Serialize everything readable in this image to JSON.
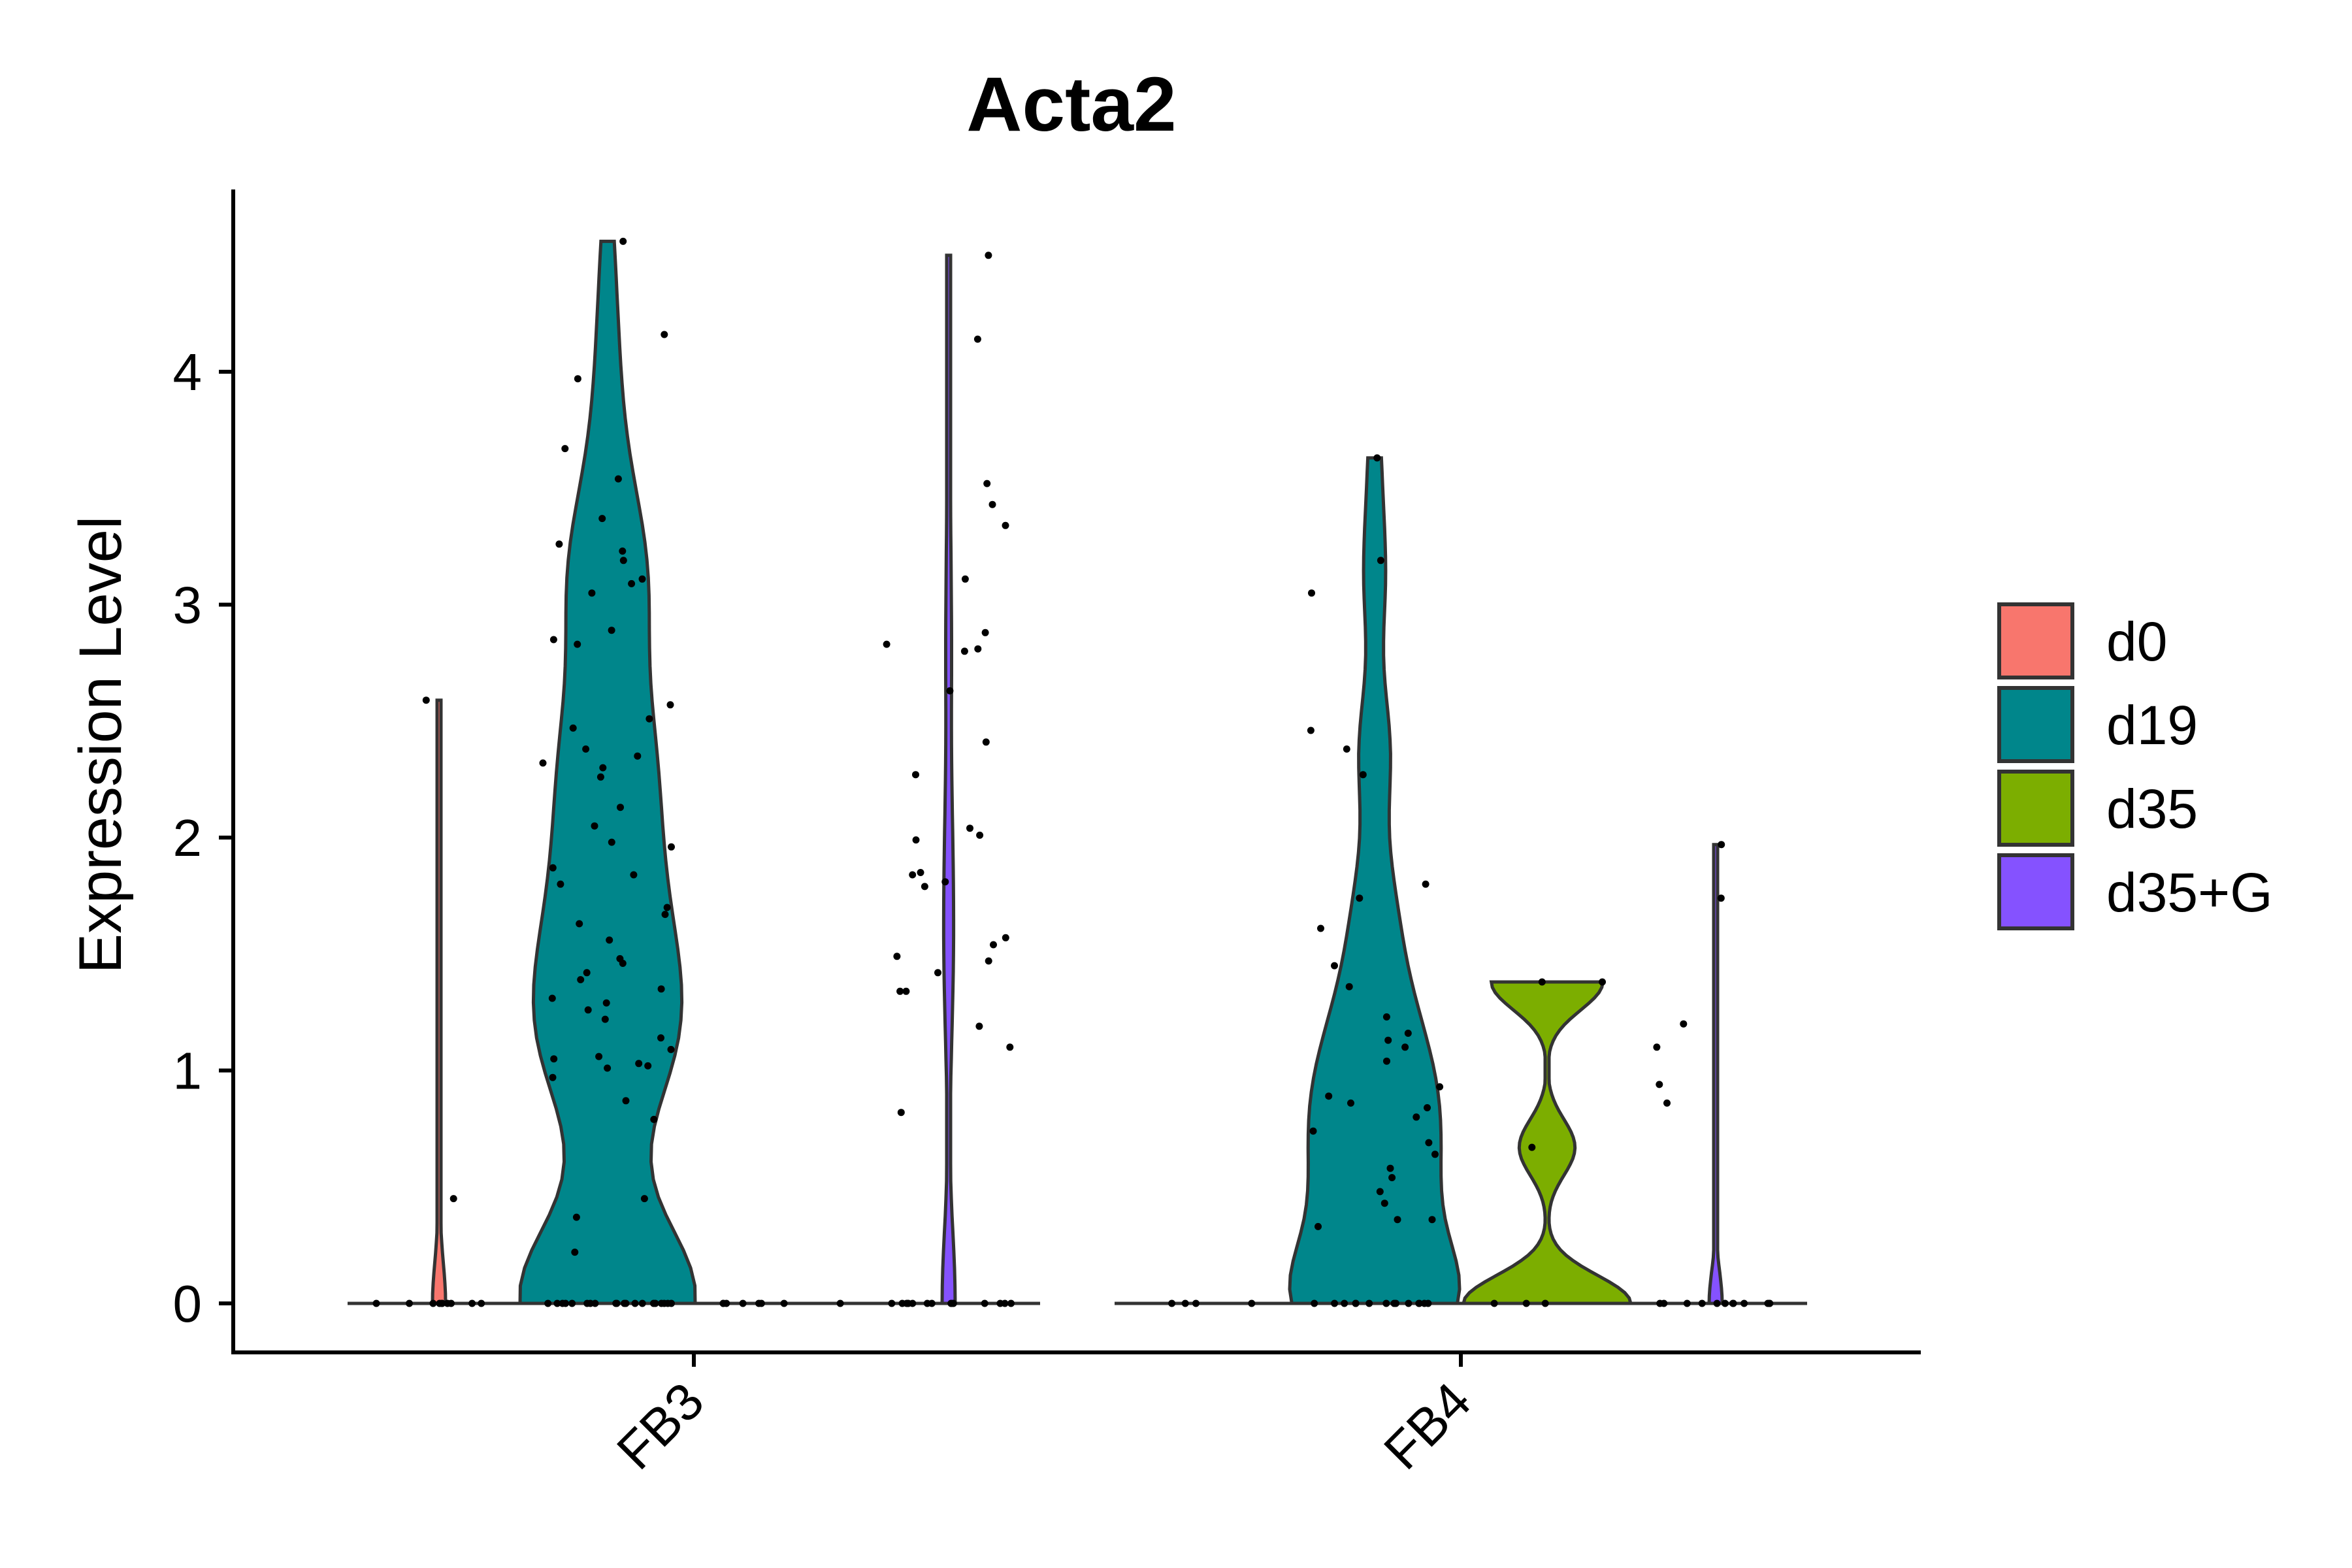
{
  "chart_data": {
    "type": "violin",
    "title": "Acta2",
    "xlabel": "",
    "ylabel": "Expression Level",
    "ylim": [
      0,
      4.56
    ],
    "yticks": [
      0,
      1,
      2,
      3,
      4
    ],
    "categories": [
      "FB3",
      "FB4"
    ],
    "legend": {
      "position": "right",
      "title": ""
    },
    "colors": {
      "d0": "#F8766D",
      "d19": "#00868B",
      "d35": "#7CAE00",
      "d35+G": "#8552FF"
    },
    "series": [
      {
        "name": "d0",
        "violins": [
          {
            "category": "FB3",
            "max": 2.59,
            "points": [
              0,
              0,
              0,
              0,
              0,
              0,
              0,
              0,
              0,
              0,
              0.45,
              2.59
            ]
          },
          {
            "category": "FB4",
            "max": 0,
            "points": [
              0,
              0,
              0,
              0
            ]
          }
        ]
      },
      {
        "name": "d19",
        "violins": [
          {
            "category": "FB3",
            "max": 4.56,
            "points": [
              0,
              0,
              0,
              0,
              0,
              0,
              0,
              0,
              0,
              0,
              0,
              0,
              0,
              0,
              0,
              0,
              0,
              0,
              0,
              0,
              0.22,
              0.37,
              0.45,
              0.79,
              0.87,
              0.97,
              1.01,
              1.02,
              1.03,
              1.05,
              1.06,
              1.09,
              1.14,
              1.22,
              1.26,
              1.29,
              1.31,
              1.35,
              1.39,
              1.42,
              1.46,
              1.48,
              1.56,
              1.63,
              1.67,
              1.7,
              1.8,
              1.84,
              1.87,
              1.96,
              1.98,
              2.05,
              2.13,
              2.26,
              2.3,
              2.32,
              2.35,
              2.38,
              2.47,
              2.51,
              2.57,
              2.83,
              2.85,
              2.89,
              3.05,
              3.09,
              3.11,
              3.19,
              3.23,
              3.26,
              3.37,
              3.54,
              3.67,
              3.97,
              4.16,
              4.56
            ]
          },
          {
            "category": "FB4",
            "max": 3.63,
            "points": [
              0,
              0,
              0,
              0,
              0,
              0,
              0,
              0,
              0,
              0,
              0,
              0,
              0,
              0,
              0.33,
              0.36,
              0.36,
              0.43,
              0.48,
              0.54,
              0.58,
              0.64,
              0.69,
              0.74,
              0.8,
              0.84,
              0.86,
              0.89,
              0.93,
              1.04,
              1.1,
              1.13,
              1.16,
              1.23,
              1.36,
              1.45,
              1.61,
              1.74,
              1.8,
              2.27,
              2.38,
              2.46,
              3.05,
              3.19,
              3.63
            ]
          }
        ]
      },
      {
        "name": "d35",
        "violins": [
          {
            "category": "FB3",
            "max": 0,
            "points": [
              0,
              0,
              0,
              0,
              0,
              0,
              0,
              0
            ]
          },
          {
            "category": "FB4",
            "max": 1.38,
            "points": [
              0,
              0,
              0,
              0.67,
              1.38,
              1.38
            ]
          }
        ]
      },
      {
        "name": "d35+G",
        "violins": [
          {
            "category": "FB3",
            "max": 4.5,
            "points": [
              0,
              0,
              0,
              0,
              0,
              0,
              0,
              0,
              0,
              0,
              0,
              0,
              0,
              0,
              0,
              0.82,
              1.1,
              1.19,
              1.34,
              1.34,
              1.42,
              1.47,
              1.49,
              1.54,
              1.57,
              1.79,
              1.81,
              1.84,
              1.85,
              1.99,
              2.01,
              2.04,
              2.27,
              2.41,
              2.63,
              2.8,
              2.81,
              2.83,
              2.88,
              3.11,
              3.34,
              3.43,
              3.52,
              4.14,
              4.5
            ]
          },
          {
            "category": "FB4",
            "max": 1.97,
            "points": [
              0,
              0,
              0,
              0,
              0,
              0,
              0,
              0,
              0,
              0,
              0,
              0,
              0.86,
              0.94,
              1.1,
              1.2,
              1.74,
              1.97
            ]
          }
        ]
      }
    ]
  }
}
